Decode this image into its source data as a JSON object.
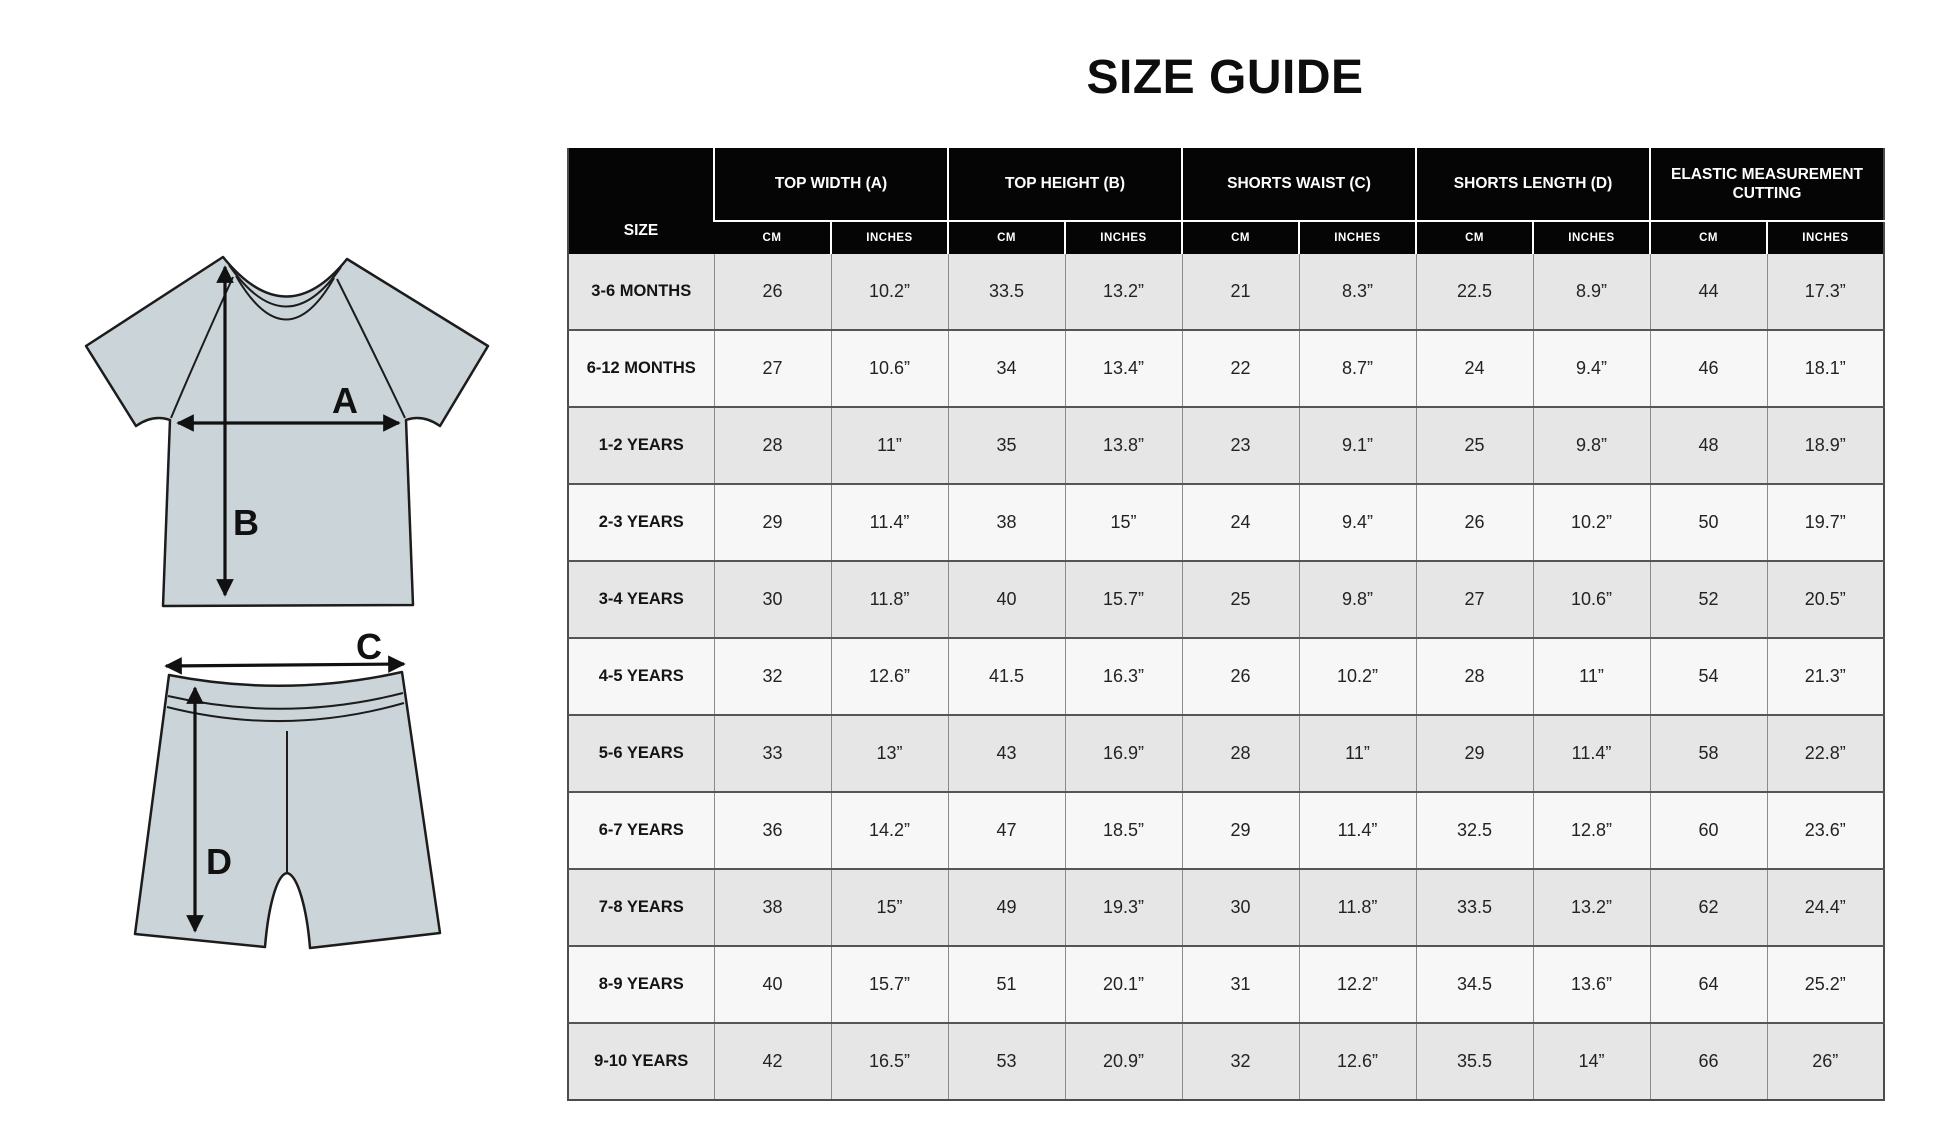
{
  "page": {
    "title": "SIZE GUIDE",
    "background_color": "#ffffff"
  },
  "diagram": {
    "garment_fill_color": "#cbd5d9",
    "garment_outline_color": "#1c1c1c",
    "arrow_color": "#111111",
    "tshirt": {
      "description": "t-shirt front view with measurement arrows",
      "width_label": "A",
      "height_label": "B"
    },
    "shorts": {
      "description": "shorts front view with measurement arrows",
      "waist_label": "C",
      "length_label": "D"
    }
  },
  "table": {
    "size_header": "SIZE",
    "units": [
      "CM",
      "INCHES"
    ],
    "groups": [
      {
        "label": "TOP WIDTH (A)"
      },
      {
        "label": "TOP HEIGHT (B)"
      },
      {
        "label": "SHORTS WAIST (C)"
      },
      {
        "label": "SHORTS LENGTH (D)"
      },
      {
        "label": "ELASTIC MEASUREMENT CUTTING"
      }
    ],
    "header_bg_color": "#050505",
    "header_text_color": "#ffffff",
    "row_alt_colors": [
      "#e7e6e6",
      "#f8f7f7"
    ],
    "rows": [
      {
        "size": "3-6 MONTHS",
        "values": [
          "26",
          "10.2”",
          "33.5",
          "13.2”",
          "21",
          "8.3”",
          "22.5",
          "8.9”",
          "44",
          "17.3”"
        ]
      },
      {
        "size": "6-12 MONTHS",
        "values": [
          "27",
          "10.6”",
          "34",
          "13.4”",
          "22",
          "8.7”",
          "24",
          "9.4”",
          "46",
          "18.1”"
        ]
      },
      {
        "size": "1-2 YEARS",
        "values": [
          "28",
          "11”",
          "35",
          "13.8”",
          "23",
          "9.1”",
          "25",
          "9.8”",
          "48",
          "18.9”"
        ]
      },
      {
        "size": "2-3 YEARS",
        "values": [
          "29",
          "11.4”",
          "38",
          "15”",
          "24",
          "9.4”",
          "26",
          "10.2”",
          "50",
          "19.7”"
        ]
      },
      {
        "size": "3-4 YEARS",
        "values": [
          "30",
          "11.8”",
          "40",
          "15.7”",
          "25",
          "9.8”",
          "27",
          "10.6”",
          "52",
          "20.5”"
        ]
      },
      {
        "size": "4-5 YEARS",
        "values": [
          "32",
          "12.6”",
          "41.5",
          "16.3”",
          "26",
          "10.2”",
          "28",
          "11”",
          "54",
          "21.3”"
        ]
      },
      {
        "size": "5-6 YEARS",
        "values": [
          "33",
          "13”",
          "43",
          "16.9”",
          "28",
          "11”",
          "29",
          "11.4”",
          "58",
          "22.8”"
        ]
      },
      {
        "size": "6-7 YEARS",
        "values": [
          "36",
          "14.2”",
          "47",
          "18.5”",
          "29",
          "11.4”",
          "32.5",
          "12.8”",
          "60",
          "23.6”"
        ]
      },
      {
        "size": "7-8 YEARS",
        "values": [
          "38",
          "15”",
          "49",
          "19.3”",
          "30",
          "11.8”",
          "33.5",
          "13.2”",
          "62",
          "24.4”"
        ]
      },
      {
        "size": "8-9 YEARS",
        "values": [
          "40",
          "15.7”",
          "51",
          "20.1”",
          "31",
          "12.2”",
          "34.5",
          "13.6”",
          "64",
          "25.2”"
        ]
      },
      {
        "size": "9-10 YEARS",
        "values": [
          "42",
          "16.5”",
          "53",
          "20.9”",
          "32",
          "12.6”",
          "35.5",
          "14”",
          "66",
          "26”"
        ]
      }
    ]
  }
}
